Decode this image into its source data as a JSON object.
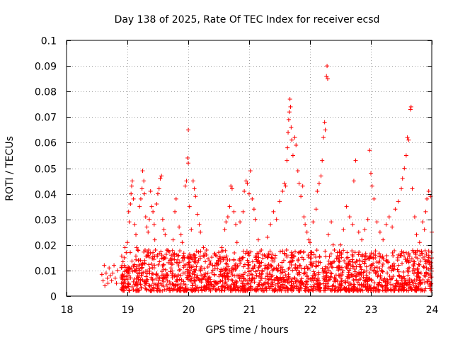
{
  "chart_data": {
    "type": "scatter",
    "title": "Day 138 of 2025, Rate Of TEC Index for receiver ecsd",
    "xlabel": "GPS time / hours",
    "ylabel": "ROTI / TECUs",
    "xlim": [
      18,
      24
    ],
    "ylim": [
      0,
      0.1
    ],
    "xticks": [
      "18",
      "19",
      "20",
      "21",
      "22",
      "23",
      "24"
    ],
    "yticks": [
      "0",
      "0.01",
      "0.02",
      "0.03",
      "0.04",
      "0.05",
      "0.06",
      "0.07",
      "0.08",
      "0.09",
      "0.1"
    ],
    "grid": true,
    "marker": "plus",
    "color": "#ff0000",
    "series": [
      {
        "name": "ROTI",
        "points": [
          [
            18.58,
            0.0085
          ],
          [
            18.6,
            0.006
          ],
          [
            18.62,
            0.012
          ],
          [
            18.63,
            0.004
          ],
          [
            18.65,
            0.009
          ],
          [
            18.67,
            0.007
          ],
          [
            18.68,
            0.005
          ],
          [
            18.7,
            0.011
          ],
          [
            18.72,
            0.008
          ],
          [
            18.74,
            0.006
          ],
          [
            18.76,
            0.009
          ],
          [
            18.78,
            0.012
          ],
          [
            18.8,
            0.007
          ],
          [
            18.82,
            0.005
          ],
          [
            18.84,
            0.01
          ],
          [
            18.9,
            0.005
          ],
          [
            18.92,
            0.007
          ],
          [
            18.95,
            0.012
          ],
          [
            18.96,
            0.019
          ],
          [
            18.98,
            0.017
          ],
          [
            19.0,
            0.021
          ],
          [
            19.02,
            0.033
          ],
          [
            19.03,
            0.029
          ],
          [
            19.05,
            0.036
          ],
          [
            19.06,
            0.04
          ],
          [
            19.07,
            0.043
          ],
          [
            19.08,
            0.045
          ],
          [
            19.1,
            0.038
          ],
          [
            19.12,
            0.028
          ],
          [
            19.14,
            0.024
          ],
          [
            19.15,
            0.019
          ],
          [
            19.17,
            0.018
          ],
          [
            19.18,
            0.014
          ],
          [
            19.2,
            0.035
          ],
          [
            19.22,
            0.038
          ],
          [
            19.24,
            0.042
          ],
          [
            19.25,
            0.049
          ],
          [
            19.27,
            0.045
          ],
          [
            19.28,
            0.04
          ],
          [
            19.3,
            0.031
          ],
          [
            19.32,
            0.027
          ],
          [
            19.34,
            0.025
          ],
          [
            19.35,
            0.018
          ],
          [
            19.36,
            0.03
          ],
          [
            19.38,
            0.041
          ],
          [
            19.4,
            0.035
          ],
          [
            19.42,
            0.033
          ],
          [
            19.44,
            0.028
          ],
          [
            19.45,
            0.022
          ],
          [
            19.46,
            0.018
          ],
          [
            19.48,
            0.036
          ],
          [
            19.5,
            0.04
          ],
          [
            19.52,
            0.042
          ],
          [
            19.54,
            0.046
          ],
          [
            19.56,
            0.047
          ],
          [
            19.58,
            0.03
          ],
          [
            19.6,
            0.026
          ],
          [
            19.62,
            0.024
          ],
          [
            19.65,
            0.018
          ],
          [
            19.7,
            0.013
          ],
          [
            19.72,
            0.016
          ],
          [
            19.75,
            0.022
          ],
          [
            19.78,
            0.033
          ],
          [
            19.8,
            0.038
          ],
          [
            19.85,
            0.027
          ],
          [
            19.88,
            0.024
          ],
          [
            19.9,
            0.021
          ],
          [
            19.95,
            0.043
          ],
          [
            19.97,
            0.045
          ],
          [
            19.99,
            0.054
          ],
          [
            20.0,
            0.052
          ],
          [
            20.0,
            0.065
          ],
          [
            20.02,
            0.035
          ],
          [
            20.05,
            0.026
          ],
          [
            20.08,
            0.045
          ],
          [
            20.1,
            0.042
          ],
          [
            20.12,
            0.039
          ],
          [
            20.15,
            0.032
          ],
          [
            20.18,
            0.028
          ],
          [
            20.2,
            0.025
          ],
          [
            20.25,
            0.019
          ],
          [
            20.3,
            0.018
          ],
          [
            20.4,
            0.012
          ],
          [
            20.45,
            0.016
          ],
          [
            20.5,
            0.014
          ],
          [
            20.55,
            0.019
          ],
          [
            20.6,
            0.026
          ],
          [
            20.62,
            0.029
          ],
          [
            20.65,
            0.031
          ],
          [
            20.68,
            0.035
          ],
          [
            20.7,
            0.043
          ],
          [
            20.72,
            0.042
          ],
          [
            20.75,
            0.033
          ],
          [
            20.78,
            0.028
          ],
          [
            20.8,
            0.021
          ],
          [
            20.85,
            0.029
          ],
          [
            20.9,
            0.033
          ],
          [
            20.92,
            0.041
          ],
          [
            20.95,
            0.045
          ],
          [
            20.97,
            0.044
          ],
          [
            21.0,
            0.04
          ],
          [
            21.02,
            0.049
          ],
          [
            21.05,
            0.038
          ],
          [
            21.08,
            0.034
          ],
          [
            21.1,
            0.03
          ],
          [
            21.15,
            0.022
          ],
          [
            21.2,
            0.018
          ],
          [
            21.25,
            0.016
          ],
          [
            21.3,
            0.023
          ],
          [
            21.35,
            0.028
          ],
          [
            21.4,
            0.033
          ],
          [
            21.45,
            0.03
          ],
          [
            21.5,
            0.037
          ],
          [
            21.55,
            0.041
          ],
          [
            21.58,
            0.044
          ],
          [
            21.6,
            0.043
          ],
          [
            21.62,
            0.053
          ],
          [
            21.63,
            0.058
          ],
          [
            21.64,
            0.064
          ],
          [
            21.65,
            0.069
          ],
          [
            21.66,
            0.072
          ],
          [
            21.67,
            0.077
          ],
          [
            21.68,
            0.074
          ],
          [
            21.69,
            0.066
          ],
          [
            21.7,
            0.061
          ],
          [
            21.72,
            0.055
          ],
          [
            21.75,
            0.062
          ],
          [
            21.77,
            0.059
          ],
          [
            21.8,
            0.049
          ],
          [
            21.82,
            0.044
          ],
          [
            21.85,
            0.039
          ],
          [
            21.88,
            0.043
          ],
          [
            21.9,
            0.031
          ],
          [
            21.92,
            0.028
          ],
          [
            21.95,
            0.025
          ],
          [
            21.98,
            0.022
          ],
          [
            22.0,
            0.021
          ],
          [
            22.05,
            0.029
          ],
          [
            22.1,
            0.034
          ],
          [
            22.12,
            0.041
          ],
          [
            22.15,
            0.044
          ],
          [
            22.18,
            0.047
          ],
          [
            22.2,
            0.053
          ],
          [
            22.22,
            0.062
          ],
          [
            22.24,
            0.068
          ],
          [
            22.25,
            0.065
          ],
          [
            22.27,
            0.086
          ],
          [
            22.28,
            0.09
          ],
          [
            22.29,
            0.085
          ],
          [
            22.3,
            0.024
          ],
          [
            22.35,
            0.029
          ],
          [
            22.38,
            0.02
          ],
          [
            22.4,
            0.018
          ],
          [
            22.45,
            0.017
          ],
          [
            22.5,
            0.02
          ],
          [
            22.55,
            0.026
          ],
          [
            22.6,
            0.035
          ],
          [
            22.65,
            0.031
          ],
          [
            22.7,
            0.028
          ],
          [
            22.72,
            0.045
          ],
          [
            22.75,
            0.053
          ],
          [
            22.8,
            0.025
          ],
          [
            22.85,
            0.022
          ],
          [
            22.9,
            0.026
          ],
          [
            22.95,
            0.03
          ],
          [
            22.98,
            0.057
          ],
          [
            23.0,
            0.048
          ],
          [
            23.02,
            0.043
          ],
          [
            23.05,
            0.038
          ],
          [
            23.1,
            0.029
          ],
          [
            23.15,
            0.025
          ],
          [
            23.2,
            0.022
          ],
          [
            23.25,
            0.028
          ],
          [
            23.3,
            0.031
          ],
          [
            23.35,
            0.027
          ],
          [
            23.4,
            0.034
          ],
          [
            23.45,
            0.037
          ],
          [
            23.5,
            0.042
          ],
          [
            23.52,
            0.046
          ],
          [
            23.55,
            0.05
          ],
          [
            23.58,
            0.055
          ],
          [
            23.6,
            0.062
          ],
          [
            23.62,
            0.061
          ],
          [
            23.65,
            0.073
          ],
          [
            23.66,
            0.074
          ],
          [
            23.68,
            0.042
          ],
          [
            23.72,
            0.031
          ],
          [
            23.75,
            0.024
          ],
          [
            23.8,
            0.021
          ],
          [
            23.85,
            0.029
          ],
          [
            23.88,
            0.026
          ],
          [
            23.9,
            0.033
          ],
          [
            23.92,
            0.038
          ],
          [
            23.95,
            0.041
          ],
          [
            23.98,
            0.039
          ],
          [
            24.0,
            0.025
          ]
        ]
      }
    ],
    "dense_band": {
      "x_range": [
        18.9,
        24.0
      ],
      "y_range": [
        0.002,
        0.018
      ],
      "count": 1800,
      "seed": 138
    }
  }
}
